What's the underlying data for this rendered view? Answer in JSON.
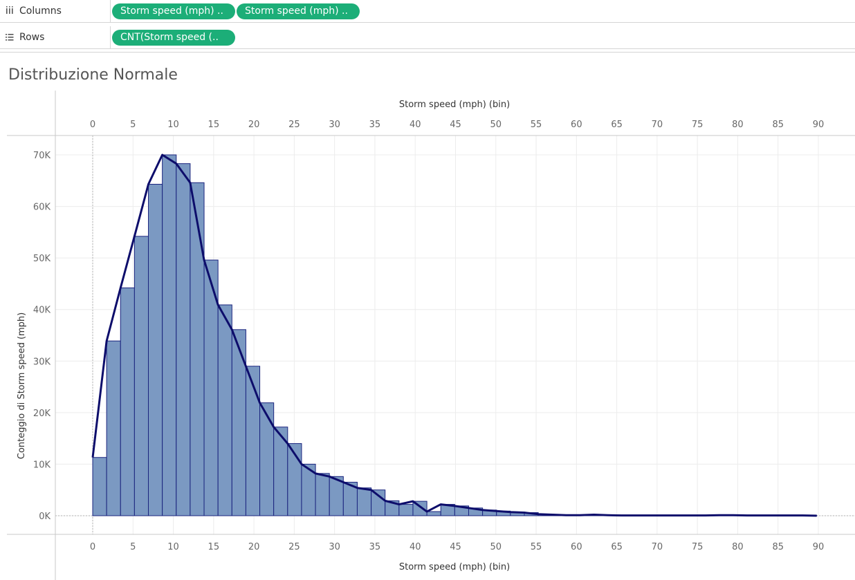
{
  "shelves": {
    "columns": {
      "label": "Columns",
      "pills": [
        "Storm speed (mph) ..",
        "Storm speed (mph) .."
      ]
    },
    "rows": {
      "label": "Rows",
      "pills": [
        "CNT(Storm speed (.."
      ]
    }
  },
  "colors": {
    "bar_fill": "#7b99c2",
    "bar_stroke": "#1a237e",
    "line": "#0d0d6b",
    "pill": "#1cae78"
  },
  "chart_data": {
    "type": "bar",
    "title": "Distribuzione Normale",
    "xlabel": "Storm speed (mph) (bin)",
    "ylabel": "Conteggio di Storm speed (mph)",
    "xlim": [
      0,
      90
    ],
    "ylim": [
      0,
      70000
    ],
    "x_ticks": [
      0,
      5,
      10,
      15,
      20,
      25,
      30,
      35,
      40,
      45,
      50,
      55,
      60,
      65,
      70,
      75,
      80,
      85,
      90
    ],
    "x_tick_labels": [
      "0",
      "5",
      "10",
      "15",
      "20",
      "25",
      "30",
      "35",
      "40",
      "45",
      "50",
      "55",
      "60",
      "65",
      "70",
      "75",
      "80",
      "85",
      "90"
    ],
    "y_ticks": [
      0,
      10000,
      20000,
      30000,
      40000,
      50000,
      60000,
      70000
    ],
    "y_tick_labels": [
      "0K",
      "10K",
      "20K",
      "30K",
      "40K",
      "50K",
      "60K",
      "70K"
    ],
    "bin_size": 1.727,
    "series": [
      {
        "type": "bar",
        "bins": [
          0,
          1.727,
          3.454,
          5.181,
          6.908,
          8.635,
          10.362,
          12.089,
          13.816,
          15.543,
          17.27,
          18.997,
          20.724,
          22.451,
          24.178,
          25.905,
          27.632,
          29.359,
          31.086,
          32.813,
          34.54,
          36.267,
          37.994,
          39.721,
          41.448,
          43.175,
          44.902,
          46.629,
          48.356,
          50.083,
          51.81,
          53.537,
          55.264,
          56.991,
          58.718,
          60.445,
          62.172,
          63.899,
          65.626,
          67.353,
          69.08,
          70.807,
          72.534,
          74.261,
          75.988,
          77.715,
          79.442,
          81.169,
          82.896,
          84.623,
          86.35,
          88.077
        ],
        "values": [
          11300,
          33900,
          44200,
          54200,
          64300,
          70000,
          68300,
          64600,
          49600,
          40900,
          36100,
          29000,
          21900,
          17200,
          14000,
          10000,
          8200,
          7600,
          6500,
          5400,
          5000,
          2900,
          2200,
          2800,
          800,
          2200,
          1900,
          1500,
          1100,
          900,
          700,
          600,
          300,
          200,
          100,
          100,
          200,
          100,
          50,
          50,
          50,
          50,
          50,
          50,
          50,
          100,
          100,
          50,
          50,
          50,
          50,
          50
        ]
      },
      {
        "type": "line",
        "x": [
          0,
          1.727,
          3.454,
          5.181,
          6.908,
          8.635,
          10.362,
          12.089,
          13.816,
          15.543,
          17.27,
          18.997,
          20.724,
          22.451,
          24.178,
          25.905,
          27.632,
          29.359,
          31.086,
          32.813,
          34.54,
          36.267,
          37.994,
          39.721,
          41.448,
          43.175,
          44.902,
          46.629,
          48.356,
          50.083,
          51.81,
          53.537,
          55.264,
          56.991,
          58.718,
          60.445,
          62.172,
          63.899,
          65.626,
          67.353,
          69.08,
          70.807,
          72.534,
          74.261,
          75.988,
          77.715,
          79.442,
          81.169,
          82.896,
          84.623,
          86.35,
          88.077,
          89.804
        ],
        "values": [
          11300,
          33900,
          44200,
          54200,
          64300,
          70000,
          68300,
          64600,
          49600,
          40900,
          36100,
          29000,
          21900,
          17200,
          14000,
          10000,
          8200,
          7600,
          6500,
          5400,
          5000,
          2900,
          2200,
          2800,
          800,
          2200,
          1900,
          1500,
          1100,
          900,
          700,
          600,
          300,
          200,
          100,
          100,
          200,
          100,
          50,
          50,
          50,
          50,
          50,
          50,
          50,
          100,
          100,
          50,
          50,
          50,
          50,
          50,
          0
        ]
      }
    ],
    "grid": true
  }
}
